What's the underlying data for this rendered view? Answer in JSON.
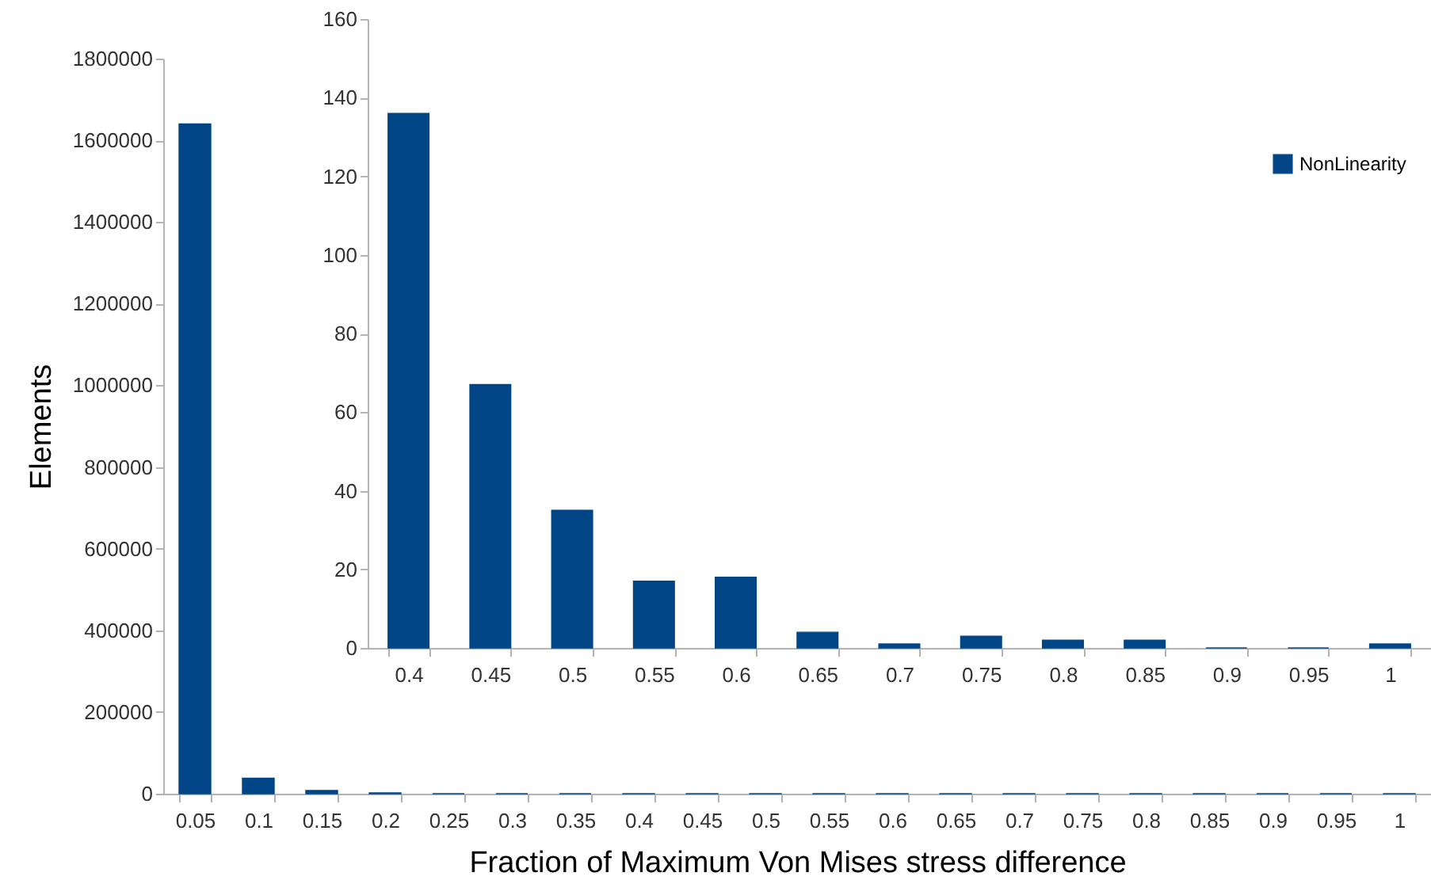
{
  "chart_data": [
    {
      "type": "bar",
      "xlabel": "Fraction of Maximum Von Mises stress difference",
      "ylabel": "Elements",
      "categories": [
        "0.05",
        "0.1",
        "0.15",
        "0.2",
        "0.25",
        "0.3",
        "0.35",
        "0.4",
        "0.45",
        "0.5",
        "0.55",
        "0.6",
        "0.65",
        "0.7",
        "0.75",
        "0.8",
        "0.85",
        "0.9",
        "0.95",
        "1"
      ],
      "series": [
        {
          "color": "#004586",
          "values": [
            1640000,
            38000,
            8000,
            2000,
            0,
            0,
            0,
            136,
            67,
            35,
            17,
            18,
            4,
            1,
            3,
            2,
            2,
            0,
            0,
            1
          ]
        }
      ],
      "ylim": [
        0,
        1800000
      ],
      "yticks": [
        0,
        200000,
        400000,
        600000,
        800000,
        1000000,
        1200000,
        1400000,
        1600000,
        1800000
      ]
    },
    {
      "type": "bar",
      "categories": [
        "0.4",
        "0.45",
        "0.5",
        "0.55",
        "0.6",
        "0.65",
        "0.7",
        "0.75",
        "0.8",
        "0.85",
        "0.9",
        "0.95",
        "1"
      ],
      "series": [
        {
          "name": "NonLinearity",
          "color": "#004586",
          "values": [
            136,
            67,
            35,
            17,
            18,
            4,
            1,
            3,
            2,
            2,
            0,
            0,
            1
          ]
        }
      ],
      "ylim": [
        0,
        160
      ],
      "yticks": [
        0,
        20,
        40,
        60,
        80,
        100,
        120,
        140,
        160
      ],
      "legend": "top right"
    }
  ]
}
